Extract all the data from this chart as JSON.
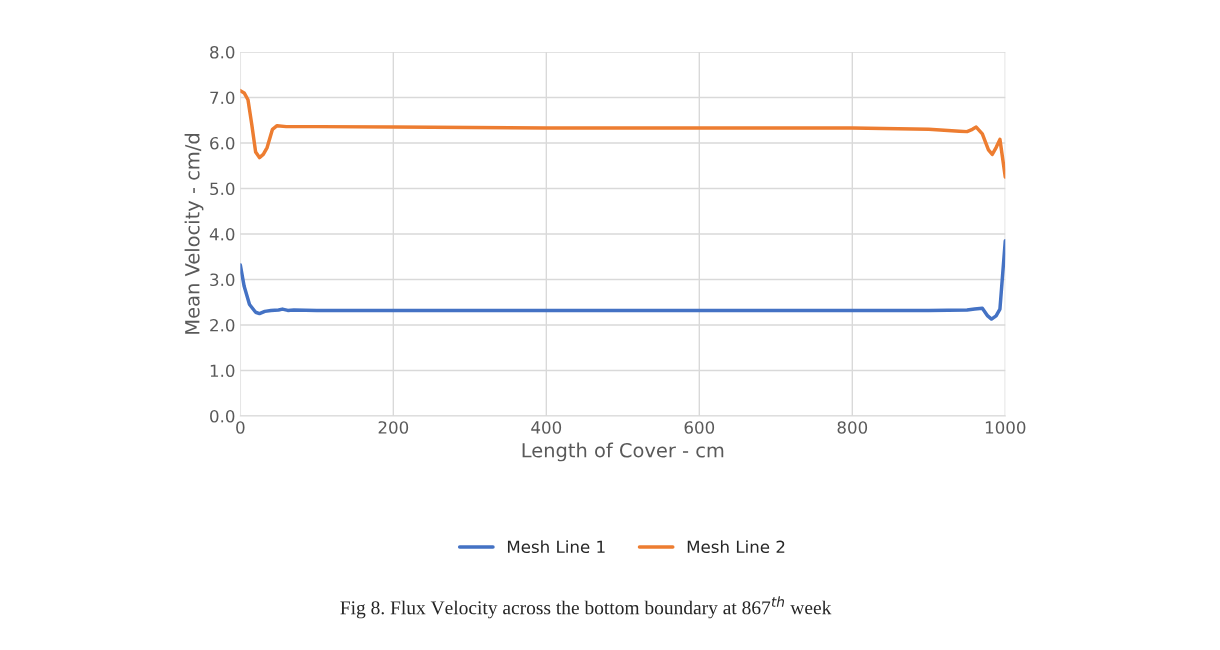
{
  "chart_data": {
    "type": "line",
    "xlabel": "Length of Cover - cm",
    "ylabel": "Mean Velocity - cm/d",
    "annotations": [
      "Fig 8. Flux Velocity across the bottom boundary at 867$^{th}$ week"
    ],
    "series": [
      {
        "name": "Mesh Line 1",
        "color": "#4472c4",
        "x": [
          0,
          5,
          12,
          20,
          25,
          32,
          40,
          50,
          55,
          62,
          70,
          100,
          300,
          500,
          700,
          900,
          950,
          960,
          970,
          977,
          982,
          988,
          993,
          1000
        ],
        "values": [
          3.32,
          2.85,
          2.45,
          2.28,
          2.25,
          2.3,
          2.32,
          2.33,
          2.35,
          2.32,
          2.33,
          2.32,
          2.32,
          2.32,
          2.32,
          2.32,
          2.33,
          2.35,
          2.37,
          2.2,
          2.13,
          2.2,
          2.35,
          3.85
        ]
      },
      {
        "name": "Mesh Line 2",
        "color": "#ed7d31",
        "x": [
          0,
          5,
          10,
          15,
          20,
          25,
          30,
          35,
          42,
          48,
          60,
          100,
          200,
          400,
          600,
          800,
          900,
          940,
          950,
          957,
          962,
          970,
          978,
          983,
          988,
          993,
          1000
        ],
        "values": [
          7.15,
          7.1,
          6.95,
          6.4,
          5.8,
          5.68,
          5.75,
          5.9,
          6.3,
          6.38,
          6.36,
          6.36,
          6.35,
          6.33,
          6.33,
          6.33,
          6.3,
          6.26,
          6.25,
          6.3,
          6.35,
          6.2,
          5.85,
          5.75,
          5.9,
          6.08,
          5.25
        ]
      }
    ],
    "xlim": [
      0,
      1000
    ],
    "xticks": [
      0,
      200,
      400,
      600,
      800,
      1000
    ],
    "ylim": [
      0,
      8
    ],
    "yticks": [
      {
        "value": 0,
        "label": "0.0"
      },
      {
        "value": 1,
        "label": "1.0"
      },
      {
        "value": 2,
        "label": "2.0"
      },
      {
        "value": 3,
        "label": "3.0"
      },
      {
        "value": 4,
        "label": "4.0"
      },
      {
        "value": 5,
        "label": "5.0"
      },
      {
        "value": 6,
        "label": "6.0"
      },
      {
        "value": 7,
        "label": "7.0"
      },
      {
        "value": 8,
        "label": "8.0"
      }
    ],
    "grid": true,
    "legend": "bottom",
    "marker": "none",
    "line_style": "solid"
  }
}
